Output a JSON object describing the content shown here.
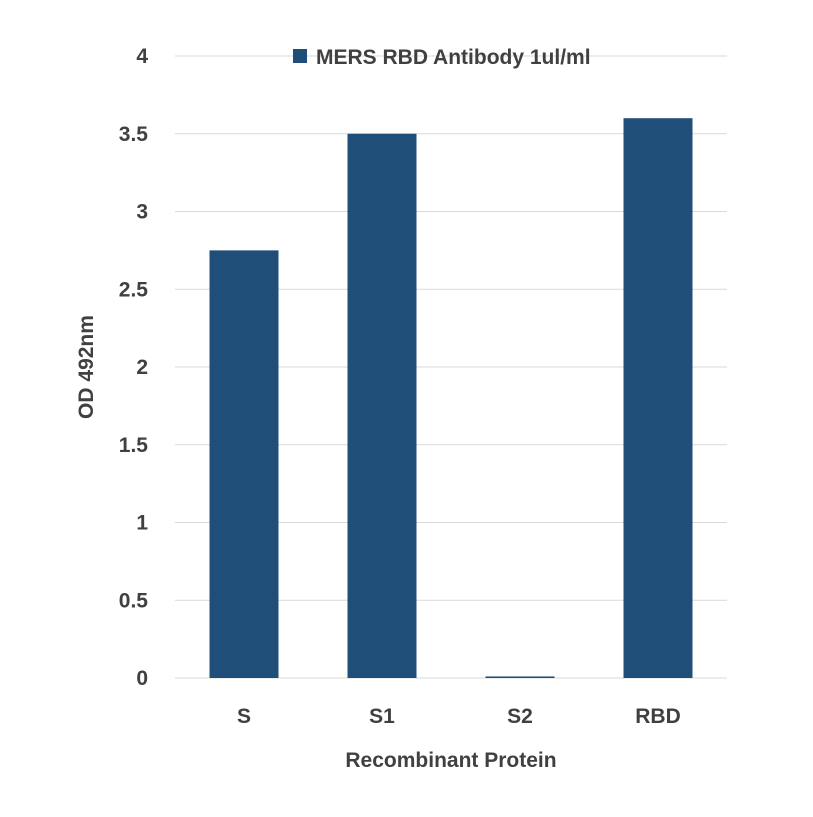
{
  "chart_data": {
    "type": "bar",
    "categories": [
      "S",
      "S1",
      "S2",
      "RBD"
    ],
    "series": [
      {
        "name": "MERS RBD Antibody 1ul/ml",
        "values": [
          2.75,
          3.5,
          0.01,
          3.6
        ]
      }
    ],
    "xlabel": "Recombinant Protein",
    "ylabel": "OD 492nm",
    "ylim": [
      0,
      4
    ],
    "yticks": [
      "0",
      "0.5",
      "1",
      "1.5",
      "2",
      "2.5",
      "3",
      "3.5",
      "4"
    ],
    "grid": true,
    "legend_position": "top",
    "colors": {
      "bar": "#1f4e79",
      "text": "#404040",
      "grid": "#d9d9d9"
    }
  }
}
